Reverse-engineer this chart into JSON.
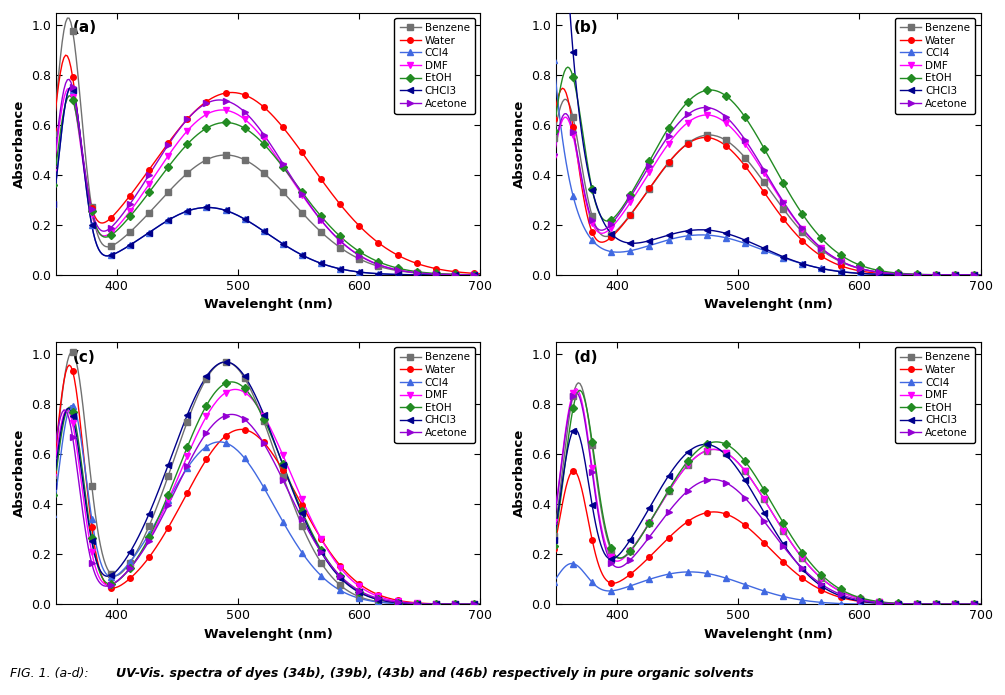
{
  "solvents": [
    "Benzene",
    "Water",
    "CCl4",
    "DMF",
    "EtOH",
    "CHCl3",
    "Acetone"
  ],
  "colors": [
    "#707070",
    "#ff0000",
    "#4169e1",
    "#ff00ff",
    "#228b22",
    "#00008b",
    "#9400d3"
  ],
  "markers": [
    "s",
    "o",
    "^",
    "v",
    "D",
    "<",
    ">"
  ],
  "xlabel": "Wavelenght (nm)",
  "ylabel": "Absorbance",
  "subplot_labels": [
    "(a)",
    "(b)",
    "(c)",
    "(d)"
  ],
  "caption_prefix": "FIG. 1. (a-d): ",
  "caption_bold": "UV-Vis. spectra of dyes (34b), (39b), (43b) and (46b) respectively in pure organic solvents"
}
